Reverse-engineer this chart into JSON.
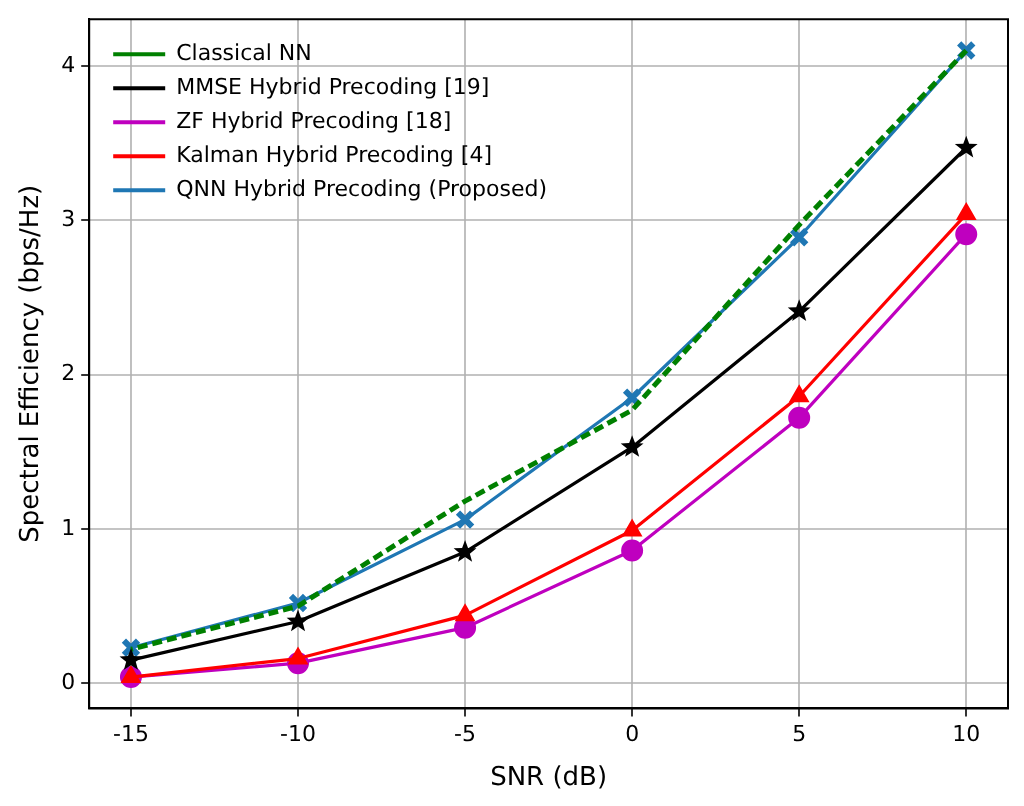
{
  "chart_data": {
    "type": "line",
    "xlabel": "SNR (dB)",
    "ylabel": "Spectral Efficiency (bps/Hz)",
    "x": [
      -15,
      -10,
      -5,
      0,
      5,
      10
    ],
    "xlim": [
      -16.25,
      11.25
    ],
    "xticks": [
      -15,
      -10,
      -5,
      0,
      5,
      10
    ],
    "ylim": [
      -0.163,
      4.303
    ],
    "yticks": [
      0,
      1,
      2,
      3,
      4
    ],
    "grid": true,
    "legend": "top left",
    "series": [
      {
        "name": "Classical NN",
        "color": "#008000",
        "values": [
          0.22,
          0.5,
          1.18,
          1.77,
          2.97,
          4.1
        ],
        "marker": "none",
        "line_style": "dashed"
      },
      {
        "name": "MMSE Hybrid Precoding [19]",
        "color": "#000000",
        "values": [
          0.15,
          0.4,
          0.85,
          1.53,
          2.41,
          3.47
        ],
        "marker": "star",
        "line_style": "solid"
      },
      {
        "name": "ZF Hybrid Precoding [18]",
        "color": "#bf00bf",
        "values": [
          0.04,
          0.13,
          0.36,
          0.86,
          1.72,
          2.91
        ],
        "marker": "circle",
        "line_style": "solid"
      },
      {
        "name": "Kalman Hybrid Precoding [4]",
        "color": "#ff0000",
        "values": [
          0.04,
          0.16,
          0.44,
          0.99,
          1.86,
          3.04
        ],
        "marker": "triangle",
        "line_style": "solid"
      },
      {
        "name": "QNN Hybrid Precoding (Proposed)",
        "color": "#1f77b4",
        "values": [
          0.23,
          0.52,
          1.06,
          1.85,
          2.89,
          4.1
        ],
        "marker": "cross",
        "line_style": "solid"
      }
    ]
  }
}
